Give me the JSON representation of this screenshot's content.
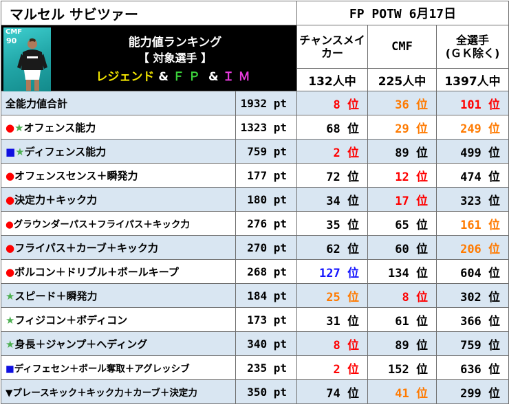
{
  "player_name": "マルセル サビツァー",
  "event_title": "FP POTW 6月17日",
  "card": {
    "position": "CMF",
    "rating": "90"
  },
  "banner": {
    "line1": "能力値ランキング",
    "line2": "【 対象選手 】",
    "line3_parts": [
      "レジェンド",
      " & ",
      "ＦＰ",
      " & ",
      "ＩＭ"
    ]
  },
  "columns": [
    {
      "header": "チャンスメイカー",
      "count": "132人中"
    },
    {
      "header": "CMF",
      "count": "225人中"
    },
    {
      "header": "全選手(ＧＫ除く)",
      "header_l1": "全選手",
      "header_l2": "(ＧＫ除く)",
      "count": "1397人中"
    }
  ],
  "header_col1_l1": "チャンスメイ",
  "header_col1_l2": "カー",
  "rank_suffix": "位",
  "pt_suffix": "pt",
  "colors": {
    "red": "#ff0000",
    "orange": "#ff7a00",
    "blue": "#1515ff",
    "row_stripe": "#d9e6f2"
  },
  "rows": [
    {
      "marks": [],
      "label": "全能力値合計",
      "pts": "1932",
      "ranks": [
        [
          "8",
          "red"
        ],
        [
          "36",
          "orange"
        ],
        [
          "101",
          "red"
        ]
      ]
    },
    {
      "marks": [
        [
          "●",
          "red"
        ],
        [
          "★",
          "green"
        ]
      ],
      "label": "オフェンス能力",
      "pts": "1323",
      "ranks": [
        [
          "68",
          "black"
        ],
        [
          "29",
          "orange"
        ],
        [
          "249",
          "orange"
        ]
      ]
    },
    {
      "marks": [
        [
          "■",
          "blue"
        ],
        [
          "★",
          "green"
        ]
      ],
      "label": "ディフェンス能力",
      "pts": "759",
      "ranks": [
        [
          "2",
          "red"
        ],
        [
          "89",
          "black"
        ],
        [
          "499",
          "black"
        ]
      ]
    },
    {
      "marks": [
        [
          "●",
          "red"
        ]
      ],
      "label": "オフェンスセンス＋瞬発力",
      "pts": "177",
      "ranks": [
        [
          "72",
          "black"
        ],
        [
          "12",
          "red"
        ],
        [
          "474",
          "black"
        ]
      ]
    },
    {
      "marks": [
        [
          "●",
          "red"
        ]
      ],
      "label": "決定力＋キック力",
      "pts": "180",
      "ranks": [
        [
          "34",
          "black"
        ],
        [
          "17",
          "red"
        ],
        [
          "323",
          "black"
        ]
      ]
    },
    {
      "marks": [
        [
          "●",
          "red"
        ]
      ],
      "label": "グラウンダーパス＋フライパス＋キック力",
      "small": true,
      "pts": "276",
      "ranks": [
        [
          "35",
          "black"
        ],
        [
          "65",
          "black"
        ],
        [
          "161",
          "orange"
        ]
      ]
    },
    {
      "marks": [
        [
          "●",
          "red"
        ]
      ],
      "label": "フライパス＋カーブ＋キック力",
      "pts": "270",
      "ranks": [
        [
          "62",
          "black"
        ],
        [
          "60",
          "black"
        ],
        [
          "206",
          "orange"
        ]
      ]
    },
    {
      "marks": [
        [
          "●",
          "red"
        ]
      ],
      "label": "ボルコン＋ドリブル＋ボールキープ",
      "pts": "268",
      "ranks": [
        [
          "127",
          "blue"
        ],
        [
          "134",
          "black"
        ],
        [
          "604",
          "black"
        ]
      ]
    },
    {
      "marks": [
        [
          "★",
          "green"
        ]
      ],
      "label": "スピード＋瞬発力",
      "pts": "184",
      "ranks": [
        [
          "25",
          "orange"
        ],
        [
          "8",
          "red"
        ],
        [
          "302",
          "black"
        ]
      ]
    },
    {
      "marks": [
        [
          "★",
          "green"
        ]
      ],
      "label": "フィジコン＋ボディコン",
      "pts": "173",
      "ranks": [
        [
          "31",
          "black"
        ],
        [
          "61",
          "black"
        ],
        [
          "366",
          "black"
        ]
      ]
    },
    {
      "marks": [
        [
          "★",
          "green"
        ]
      ],
      "label": "身長＋ジャンプ＋ヘディング",
      "pts": "340",
      "ranks": [
        [
          "8",
          "red"
        ],
        [
          "89",
          "black"
        ],
        [
          "759",
          "black"
        ]
      ]
    },
    {
      "marks": [
        [
          "■",
          "blue"
        ]
      ],
      "label": "ディフェセン＋ボール奪取＋アグレッシブ",
      "small": true,
      "pts": "235",
      "ranks": [
        [
          "2",
          "red"
        ],
        [
          "152",
          "black"
        ],
        [
          "636",
          "black"
        ]
      ]
    },
    {
      "marks": [
        [
          "▼",
          "black"
        ]
      ],
      "label": "プレースキック＋キック力＋カーブ＋決定力",
      "small": true,
      "pts": "350",
      "ranks": [
        [
          "74",
          "black"
        ],
        [
          "41",
          "orange"
        ],
        [
          "299",
          "black"
        ]
      ]
    }
  ]
}
